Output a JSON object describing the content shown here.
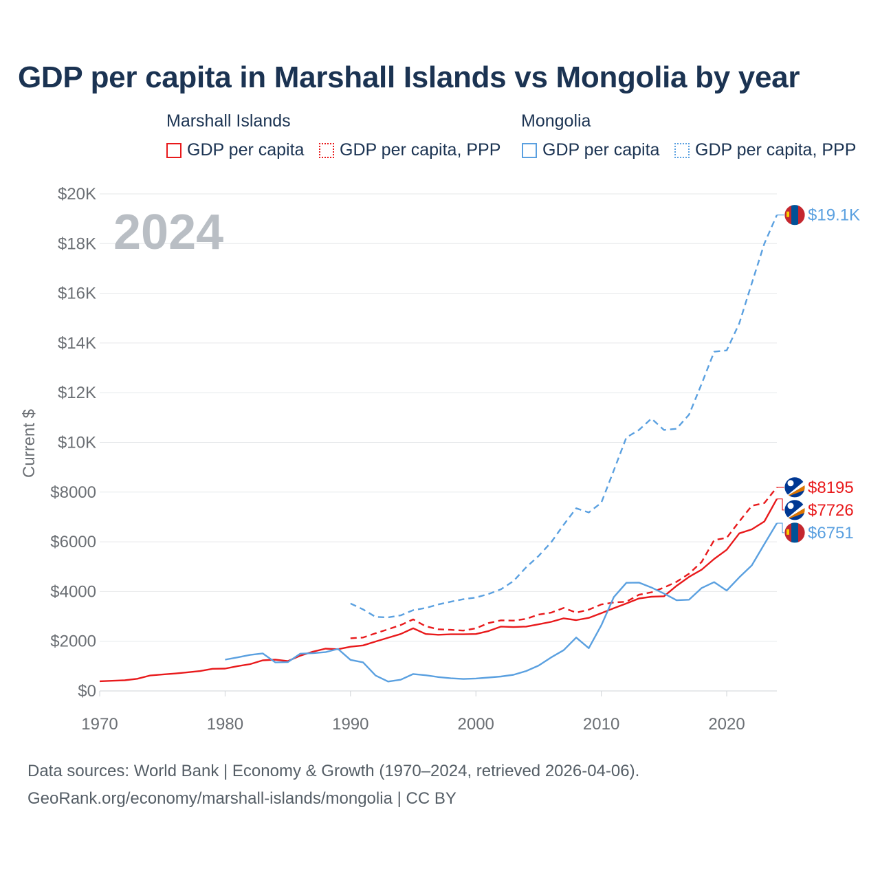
{
  "chart_data": {
    "type": "line",
    "title": "GDP per capita in Marshall Islands vs Mongolia by year",
    "year_label": "2024",
    "ylabel": "Current $",
    "xlabel": "",
    "xlim": [
      1970,
      2024
    ],
    "ylim": [
      0,
      20000
    ],
    "x_ticks": [
      "1970",
      "1980",
      "1990",
      "2000",
      "2010",
      "2020"
    ],
    "y_ticks": [
      "$0",
      "$2000",
      "$4000",
      "$6000",
      "$8000",
      "$10K",
      "$12K",
      "$14K",
      "$16K",
      "$18K",
      "$20K"
    ],
    "legend": {
      "groups": [
        {
          "name": "Marshall Islands",
          "items": [
            "GDP per capita",
            "GDP per capita, PPP"
          ]
        },
        {
          "name": "Mongolia",
          "items": [
            "GDP per capita",
            "GDP per capita, PPP"
          ]
        }
      ]
    },
    "colors": {
      "marshall_islands": "#e8191b",
      "mongolia": "#5aa0e0"
    },
    "series": [
      {
        "name": "Marshall Islands GDP per capita",
        "country": "Marshall Islands",
        "dashed": false,
        "color": "#e8191b",
        "end_label": "$7726",
        "x": [
          1970,
          1971,
          1972,
          1973,
          1974,
          1975,
          1976,
          1977,
          1978,
          1979,
          1980,
          1981,
          1982,
          1983,
          1984,
          1985,
          1986,
          1987,
          1988,
          1989,
          1990,
          1991,
          1992,
          1993,
          1994,
          1995,
          1996,
          1997,
          1998,
          1999,
          2000,
          2001,
          2002,
          2003,
          2004,
          2005,
          2006,
          2007,
          2008,
          2009,
          2010,
          2011,
          2012,
          2013,
          2014,
          2015,
          2016,
          2017,
          2018,
          2019,
          2020,
          2021,
          2022,
          2023,
          2024
        ],
        "values": [
          390,
          410,
          430,
          490,
          620,
          660,
          700,
          750,
          800,
          890,
          900,
          1000,
          1080,
          1230,
          1260,
          1200,
          1420,
          1580,
          1700,
          1680,
          1780,
          1830,
          1990,
          2140,
          2290,
          2520,
          2290,
          2260,
          2280,
          2280,
          2290,
          2410,
          2590,
          2570,
          2590,
          2680,
          2780,
          2920,
          2850,
          2940,
          3130,
          3330,
          3520,
          3720,
          3790,
          3810,
          4230,
          4590,
          4880,
          5310,
          5680,
          6340,
          6500,
          6820,
          7726
        ]
      },
      {
        "name": "Marshall Islands GDP per capita, PPP",
        "country": "Marshall Islands",
        "dashed": true,
        "color": "#e8191b",
        "end_label": "$8195",
        "x": [
          1990,
          1991,
          1992,
          1993,
          1994,
          1995,
          1996,
          1997,
          1998,
          1999,
          2000,
          2001,
          2002,
          2003,
          2004,
          2005,
          2006,
          2007,
          2008,
          2009,
          2010,
          2011,
          2012,
          2013,
          2014,
          2015,
          2016,
          2017,
          2018,
          2019,
          2020,
          2021,
          2022,
          2023,
          2024
        ],
        "values": [
          2120,
          2150,
          2320,
          2480,
          2650,
          2880,
          2600,
          2480,
          2460,
          2430,
          2520,
          2730,
          2840,
          2830,
          2900,
          3070,
          3150,
          3340,
          3150,
          3270,
          3480,
          3560,
          3590,
          3870,
          3970,
          4160,
          4390,
          4720,
          5190,
          6070,
          6160,
          6820,
          7450,
          7560,
          8195
        ]
      },
      {
        "name": "Mongolia GDP per capita",
        "country": "Mongolia",
        "dashed": false,
        "color": "#5aa0e0",
        "end_label": "$6751",
        "x": [
          1980,
          1981,
          1982,
          1983,
          1984,
          1985,
          1986,
          1987,
          1988,
          1989,
          1990,
          1991,
          1992,
          1993,
          1994,
          1995,
          1996,
          1997,
          1998,
          1999,
          2000,
          2001,
          2002,
          2003,
          2004,
          2005,
          2006,
          2007,
          2008,
          2009,
          2010,
          2011,
          2012,
          2013,
          2014,
          2015,
          2016,
          2017,
          2018,
          2019,
          2020,
          2021,
          2022,
          2023,
          2024
        ],
        "values": [
          1260,
          1350,
          1450,
          1510,
          1150,
          1160,
          1500,
          1520,
          1560,
          1690,
          1250,
          1150,
          620,
          380,
          450,
          680,
          630,
          560,
          510,
          480,
          500,
          540,
          580,
          650,
          800,
          1020,
          1350,
          1640,
          2150,
          1720,
          2640,
          3780,
          4350,
          4360,
          4160,
          3920,
          3650,
          3670,
          4140,
          4380,
          4040,
          4570,
          5050,
          5910,
          6751
        ]
      },
      {
        "name": "Mongolia GDP per capita, PPP",
        "country": "Mongolia",
        "dashed": true,
        "color": "#5aa0e0",
        "end_label": "$19.1K",
        "x": [
          1990,
          1991,
          1992,
          1993,
          1994,
          1995,
          1996,
          1997,
          1998,
          1999,
          2000,
          2001,
          2002,
          2003,
          2004,
          2005,
          2006,
          2007,
          2008,
          2009,
          2010,
          2011,
          2012,
          2013,
          2014,
          2015,
          2016,
          2017,
          2018,
          2019,
          2020,
          2021,
          2022,
          2023,
          2024
        ],
        "values": [
          3520,
          3280,
          2980,
          2960,
          3040,
          3250,
          3340,
          3480,
          3590,
          3690,
          3760,
          3900,
          4090,
          4420,
          4970,
          5430,
          5980,
          6690,
          7350,
          7180,
          7570,
          8880,
          10200,
          10500,
          10960,
          10500,
          10550,
          11120,
          12360,
          13650,
          13700,
          14790,
          16400,
          18000,
          19150
        ]
      }
    ]
  },
  "footer": {
    "line1": "Data sources: World Bank | Economy & Growth (1970–2024, retrieved 2026-04-06).",
    "line2": "GeoRank.org/economy/marshall-islands/mongolia | CC BY"
  }
}
